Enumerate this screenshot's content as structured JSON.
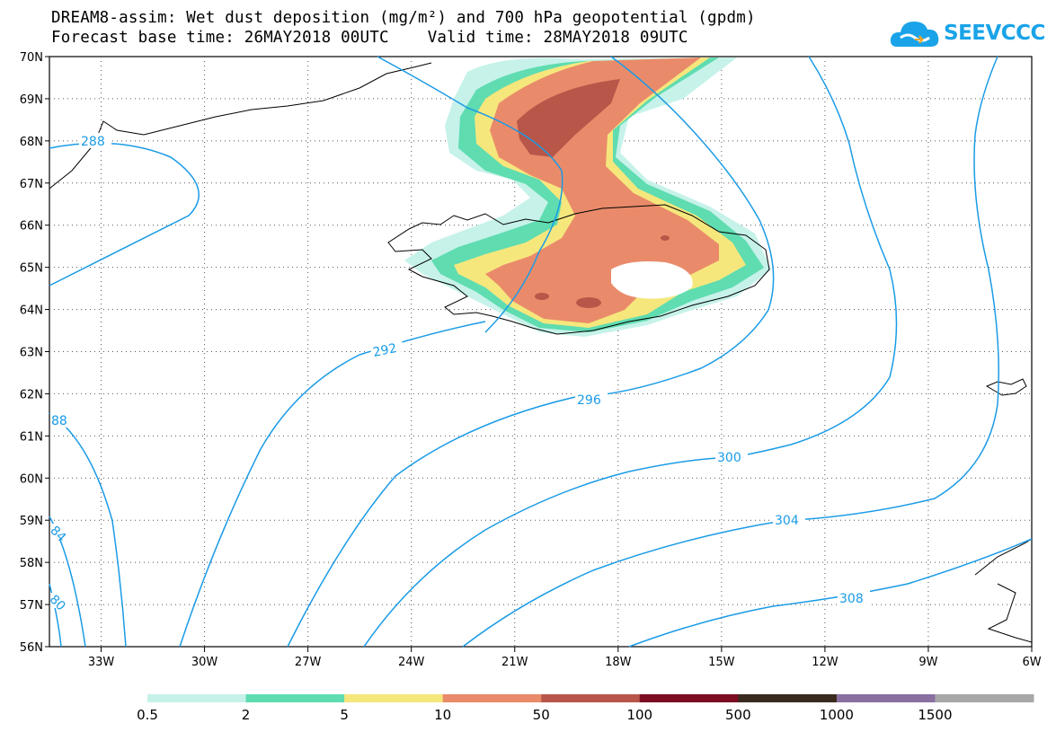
{
  "header": {
    "line1": "DREAM8-assim: Wet dust deposition (mg/m²) and 700 hPa geopotential (gpdm)",
    "line2": "Forecast base time: 26MAY2018 00UTC    Valid time: 28MAY2018 09UTC"
  },
  "logo": {
    "text": "SEEVCCC",
    "icon": "cloud-icon",
    "color": "#1aa3e8"
  },
  "map": {
    "lat_labels": [
      "70N",
      "69N",
      "68N",
      "67N",
      "66N",
      "65N",
      "64N",
      "63N",
      "62N",
      "61N",
      "60N",
      "59N",
      "58N",
      "57N",
      "56N"
    ],
    "lon_labels": [
      "33W",
      "30W",
      "27W",
      "24W",
      "21W",
      "18W",
      "15W",
      "12W",
      "9W",
      "6W"
    ],
    "lat_range": [
      56,
      70
    ],
    "lon_range": [
      -34.5,
      -6
    ],
    "grid": "dotted",
    "contour_color": "#1a9be6",
    "contour_labels": [
      "288",
      "292",
      "296",
      "300",
      "304",
      "308",
      "88",
      "84",
      "80"
    ]
  },
  "legend": {
    "labels": [
      "0.5",
      "2",
      "5",
      "10",
      "50",
      "100",
      "500",
      "1000",
      "1500"
    ],
    "colors": [
      "#c6f2ea",
      "#5fdcb0",
      "#f6e77d",
      "#e98b6a",
      "#b8564a",
      "#7d0d22",
      "#3b2a1e",
      "#8b6fa0",
      "#a8a8a8"
    ]
  }
}
